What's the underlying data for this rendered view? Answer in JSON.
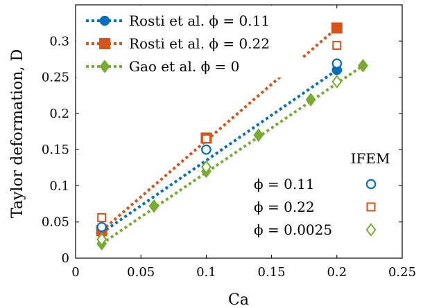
{
  "chart_data": {
    "type": "line",
    "xlabel": "Ca",
    "ylabel": "Taylor deformation, D",
    "xlim": [
      0,
      0.25
    ],
    "ylim": [
      0,
      0.35
    ],
    "xticks": [
      0,
      0.05,
      0.1,
      0.15,
      0.2,
      0.25
    ],
    "yticks": [
      0,
      0.05,
      0.1,
      0.15,
      0.2,
      0.25,
      0.3
    ],
    "xtick_labels": [
      "0",
      "0.05",
      "0.1",
      "0.15",
      "0.2",
      "0.25"
    ],
    "ytick_labels": [
      "0",
      "0.05",
      "0.1",
      "0.15",
      "0.2",
      "0.25",
      "0.3"
    ],
    "grid": false,
    "legend_position": "top-left",
    "series": [
      {
        "name": "Rosti et al. ϕ = 0.11",
        "style": "dotted-line-filled-circle",
        "color": "#0072BD",
        "x": [
          0.02,
          0.1,
          0.2
        ],
        "y": [
          0.035,
          0.15,
          0.26
        ]
      },
      {
        "name": "Rosti et al. ϕ = 0.22",
        "style": "dotted-line-filled-square",
        "color": "#D95319",
        "x": [
          0.02,
          0.1,
          0.2
        ],
        "y": [
          0.038,
          0.166,
          0.318
        ]
      },
      {
        "name": "Gao et al. ϕ = 0",
        "style": "dotted-line-filled-diamond",
        "color": "#77AC30",
        "x": [
          0.02,
          0.06,
          0.1,
          0.14,
          0.18,
          0.22
        ],
        "y": [
          0.02,
          0.072,
          0.12,
          0.17,
          0.219,
          0.266
        ]
      },
      {
        "name": "ϕ = 0.11",
        "group": "IFEM",
        "style": "open-circle",
        "color": "#0072BD",
        "x": [
          0.02,
          0.1,
          0.2
        ],
        "y": [
          0.043,
          0.15,
          0.269
        ]
      },
      {
        "name": "ϕ = 0.22",
        "group": "IFEM",
        "style": "open-square",
        "color": "#D95319",
        "x": [
          0.02,
          0.1,
          0.2
        ],
        "y": [
          0.056,
          0.165,
          0.294
        ]
      },
      {
        "name": "ϕ = 0.0025",
        "group": "IFEM",
        "style": "open-diamond",
        "color": "#77AC30",
        "x": [
          0.02,
          0.1,
          0.2
        ],
        "y": [
          0.026,
          0.126,
          0.244
        ]
      }
    ],
    "legend_main": [
      "Rosti et al. ϕ = 0.11",
      "Rosti et al. ϕ = 0.22",
      "Gao et al. ϕ = 0"
    ],
    "legend_ifem_title": "IFEM",
    "legend_ifem": [
      "ϕ = 0.11",
      "ϕ = 0.22",
      "ϕ = 0.0025"
    ]
  }
}
